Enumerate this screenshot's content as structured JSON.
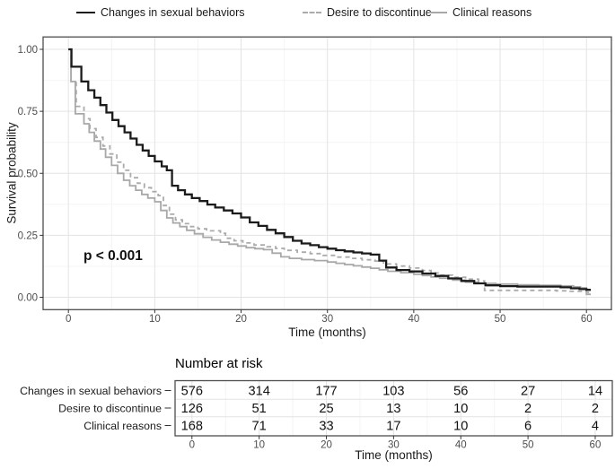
{
  "legend": {
    "items": [
      {
        "label": "Changes in sexual behaviors",
        "color": "#1b1b1b",
        "dash": null
      },
      {
        "label": "Desire to discontinue",
        "color": "#ababab",
        "dash": "5,4"
      },
      {
        "label": "Clinical reasons",
        "color": "#a8a8a8",
        "dash": null
      }
    ]
  },
  "chart_data": {
    "type": "line",
    "subtype": "kaplan-meier-step",
    "title": "",
    "xlabel": "Time (months)",
    "ylabel": "Survival probability",
    "xlim": [
      -3,
      63
    ],
    "ylim": [
      -0.05,
      1.05
    ],
    "x_ticks": [
      0,
      10,
      20,
      30,
      40,
      50,
      60
    ],
    "y_ticks": [
      "1.00",
      "0.75",
      "0.50",
      "0.25",
      "0.00"
    ],
    "y_tick_values": [
      1.0,
      0.75,
      0.5,
      0.25,
      0.0
    ],
    "x_minor_ticks": [
      5,
      15,
      25,
      35,
      45,
      55
    ],
    "y_minor_values": [
      0.125,
      0.375,
      0.625,
      0.875
    ],
    "grid": "major+minor",
    "legend_position": "top",
    "annotation": {
      "text": "p < 0.001",
      "x": 6,
      "y": 0.17
    },
    "series": [
      {
        "name": "Changes in sexual behaviors",
        "color": "#1b1b1b",
        "width": 2.3,
        "dash": null,
        "points": [
          [
            0,
            1
          ],
          [
            0.35,
            0.93
          ],
          [
            1.5,
            0.87
          ],
          [
            2.3,
            0.835
          ],
          [
            3,
            0.805
          ],
          [
            3.7,
            0.775
          ],
          [
            4.4,
            0.745
          ],
          [
            5.1,
            0.715
          ],
          [
            5.8,
            0.69
          ],
          [
            6.5,
            0.665
          ],
          [
            7.2,
            0.64
          ],
          [
            7.9,
            0.615
          ],
          [
            8.6,
            0.592
          ],
          [
            9.3,
            0.57
          ],
          [
            10,
            0.548
          ],
          [
            10.8,
            0.528
          ],
          [
            11.4,
            0.512
          ],
          [
            12,
            0.45
          ],
          [
            12.7,
            0.432
          ],
          [
            13.5,
            0.415
          ],
          [
            14.3,
            0.4
          ],
          [
            15.2,
            0.388
          ],
          [
            16.1,
            0.374
          ],
          [
            17,
            0.362
          ],
          [
            18,
            0.35
          ],
          [
            19,
            0.338
          ],
          [
            20,
            0.322
          ],
          [
            21,
            0.302
          ],
          [
            22,
            0.288
          ],
          [
            23,
            0.272
          ],
          [
            24,
            0.258
          ],
          [
            25,
            0.243
          ],
          [
            26,
            0.228
          ],
          [
            27,
            0.217
          ],
          [
            28,
            0.21
          ],
          [
            29,
            0.202
          ],
          [
            30,
            0.196
          ],
          [
            31,
            0.19
          ],
          [
            32,
            0.185
          ],
          [
            33,
            0.181
          ],
          [
            34,
            0.177
          ],
          [
            35,
            0.172
          ],
          [
            36,
            0.148
          ],
          [
            36.8,
            0.12
          ],
          [
            38,
            0.11
          ],
          [
            39.5,
            0.104
          ],
          [
            41,
            0.096
          ],
          [
            42.5,
            0.086
          ],
          [
            44,
            0.076
          ],
          [
            45.5,
            0.066
          ],
          [
            47,
            0.056
          ],
          [
            48.3,
            0.048
          ],
          [
            50,
            0.045
          ],
          [
            52,
            0.043
          ],
          [
            55.5,
            0.043
          ],
          [
            57,
            0.04
          ],
          [
            58.2,
            0.036
          ],
          [
            59.2,
            0.033
          ],
          [
            60,
            0.03
          ]
        ]
      },
      {
        "name": "Desire to discontinue",
        "color": "#ababab",
        "width": 1.8,
        "dash": "5,4",
        "points": [
          [
            0,
            1
          ],
          [
            0.3,
            0.87
          ],
          [
            0.9,
            0.77
          ],
          [
            1.8,
            0.72
          ],
          [
            2.5,
            0.68
          ],
          [
            3.2,
            0.645
          ],
          [
            4,
            0.61
          ],
          [
            4.8,
            0.578
          ],
          [
            5.6,
            0.545
          ],
          [
            6.4,
            0.512
          ],
          [
            7.2,
            0.482
          ],
          [
            8,
            0.46
          ],
          [
            8.8,
            0.442
          ],
          [
            9.6,
            0.426
          ],
          [
            10.4,
            0.41
          ],
          [
            11,
            0.37
          ],
          [
            11.7,
            0.335
          ],
          [
            12.4,
            0.312
          ],
          [
            13.2,
            0.297
          ],
          [
            14,
            0.285
          ],
          [
            15,
            0.276
          ],
          [
            16,
            0.268
          ],
          [
            17.6,
            0.258
          ],
          [
            18.2,
            0.238
          ],
          [
            19.2,
            0.228
          ],
          [
            20.2,
            0.219
          ],
          [
            21.5,
            0.211
          ],
          [
            23,
            0.204
          ],
          [
            24,
            0.197
          ],
          [
            25,
            0.189
          ],
          [
            26.5,
            0.182
          ],
          [
            28,
            0.176
          ],
          [
            29.5,
            0.169
          ],
          [
            31,
            0.162
          ],
          [
            32.5,
            0.157
          ],
          [
            34,
            0.151
          ],
          [
            35.5,
            0.146
          ],
          [
            36.5,
            0.134
          ],
          [
            38,
            0.126
          ],
          [
            39.5,
            0.118
          ],
          [
            41,
            0.108
          ],
          [
            42,
            0.098
          ],
          [
            43,
            0.089
          ],
          [
            44.5,
            0.081
          ],
          [
            46,
            0.073
          ],
          [
            47.5,
            0.066
          ],
          [
            48.2,
            0.028
          ],
          [
            55.2,
            0.028
          ],
          [
            56.5,
            0.026
          ],
          [
            58,
            0.024
          ],
          [
            60,
            0.02
          ]
        ]
      },
      {
        "name": "Clinical reasons",
        "color": "#a8a8a8",
        "width": 1.8,
        "dash": null,
        "points": [
          [
            0,
            1
          ],
          [
            0.3,
            0.87
          ],
          [
            0.8,
            0.74
          ],
          [
            1.8,
            0.7
          ],
          [
            2.4,
            0.665
          ],
          [
            3,
            0.63
          ],
          [
            3.7,
            0.598
          ],
          [
            4.3,
            0.565
          ],
          [
            5,
            0.532
          ],
          [
            5.7,
            0.5
          ],
          [
            6.4,
            0.472
          ],
          [
            7.1,
            0.45
          ],
          [
            7.8,
            0.432
          ],
          [
            8.5,
            0.415
          ],
          [
            9.2,
            0.4
          ],
          [
            10,
            0.385
          ],
          [
            10.7,
            0.35
          ],
          [
            11.4,
            0.32
          ],
          [
            12.1,
            0.3
          ],
          [
            12.9,
            0.285
          ],
          [
            13.7,
            0.27
          ],
          [
            14.6,
            0.256
          ],
          [
            15.6,
            0.242
          ],
          [
            16.6,
            0.231
          ],
          [
            17.6,
            0.222
          ],
          [
            18.6,
            0.214
          ],
          [
            19.6,
            0.207
          ],
          [
            20.6,
            0.2
          ],
          [
            21.6,
            0.196
          ],
          [
            22.6,
            0.192
          ],
          [
            23.6,
            0.178
          ],
          [
            24.6,
            0.163
          ],
          [
            25.6,
            0.157
          ],
          [
            27,
            0.152
          ],
          [
            28.5,
            0.148
          ],
          [
            30,
            0.142
          ],
          [
            31,
            0.137
          ],
          [
            32,
            0.132
          ],
          [
            33,
            0.127
          ],
          [
            34,
            0.122
          ],
          [
            35,
            0.117
          ],
          [
            36,
            0.111
          ],
          [
            37,
            0.105
          ],
          [
            38.5,
            0.099
          ],
          [
            40,
            0.093
          ],
          [
            41,
            0.088
          ],
          [
            42,
            0.082
          ],
          [
            43,
            0.077
          ],
          [
            44.5,
            0.069
          ],
          [
            46,
            0.061
          ],
          [
            47.5,
            0.056
          ],
          [
            49.5,
            0.053
          ],
          [
            52,
            0.05
          ],
          [
            54.5,
            0.048
          ],
          [
            57,
            0.046
          ],
          [
            58.5,
            0.042
          ],
          [
            59.3,
            0.038
          ],
          [
            60,
            0.012
          ]
        ]
      }
    ]
  },
  "risk_table": {
    "title": "Number at risk",
    "xlabel": "Time (months)",
    "time_points": [
      0,
      10,
      20,
      30,
      40,
      50,
      60
    ],
    "rows": [
      {
        "label": "Changes in sexual behaviors",
        "counts": [
          576,
          314,
          177,
          103,
          56,
          27,
          14
        ]
      },
      {
        "label": "Desire to discontinue",
        "counts": [
          126,
          51,
          25,
          13,
          10,
          2,
          2
        ]
      },
      {
        "label": "Clinical reasons",
        "counts": [
          168,
          71,
          33,
          17,
          10,
          6,
          4
        ]
      }
    ]
  },
  "colors": {
    "panel_border": "#4d4d4d",
    "grid_major": "#e3e3e3",
    "grid_minor": "#f4f4f4",
    "tick_mark": "#333333",
    "tick_label": "#4d4d4d",
    "text": "#1a1a1a",
    "background": "#ffffff"
  }
}
